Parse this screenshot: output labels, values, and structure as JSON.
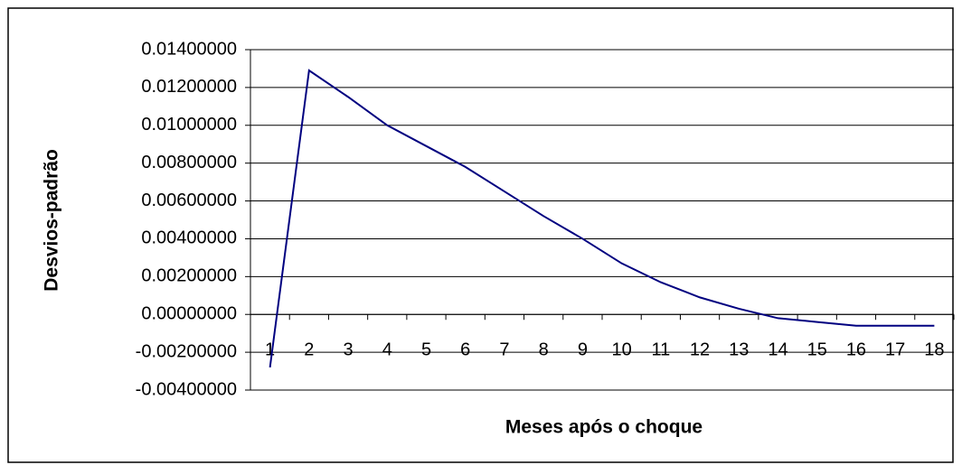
{
  "chart_data": {
    "type": "line",
    "x_label": "Meses após o choque",
    "y_label": "Desvios-padrão",
    "categories": [
      "1",
      "2",
      "3",
      "4",
      "5",
      "6",
      "7",
      "8",
      "9",
      "10",
      "11",
      "12",
      "13",
      "14",
      "15",
      "16",
      "17",
      "18"
    ],
    "series": [
      {
        "color": "#000080",
        "values": [
          -0.0028,
          0.0129,
          0.0115,
          0.01,
          0.0089,
          0.0078,
          0.0065,
          0.0052,
          0.004,
          0.0027,
          0.0017,
          0.0009,
          0.0003,
          -0.0002,
          -0.0004,
          -0.0006,
          -0.0006,
          -0.0006
        ]
      }
    ],
    "ylim": [
      -0.004,
      0.014
    ],
    "yticks": [
      {
        "value": -0.004,
        "label": "-0.00400000"
      },
      {
        "value": -0.002,
        "label": "-0.00200000"
      },
      {
        "value": 0,
        "label": "0.00000000"
      },
      {
        "value": 0.002,
        "label": "0.00200000"
      },
      {
        "value": 0.004,
        "label": "0.00400000"
      },
      {
        "value": 0.006,
        "label": "0.00600000"
      },
      {
        "value": 0.008,
        "label": "0.00800000"
      },
      {
        "value": 0.01,
        "label": "0.01000000"
      },
      {
        "value": 0.012,
        "label": "0.01200000"
      },
      {
        "value": 0.014,
        "label": "0.01400000"
      }
    ],
    "grid": true
  }
}
